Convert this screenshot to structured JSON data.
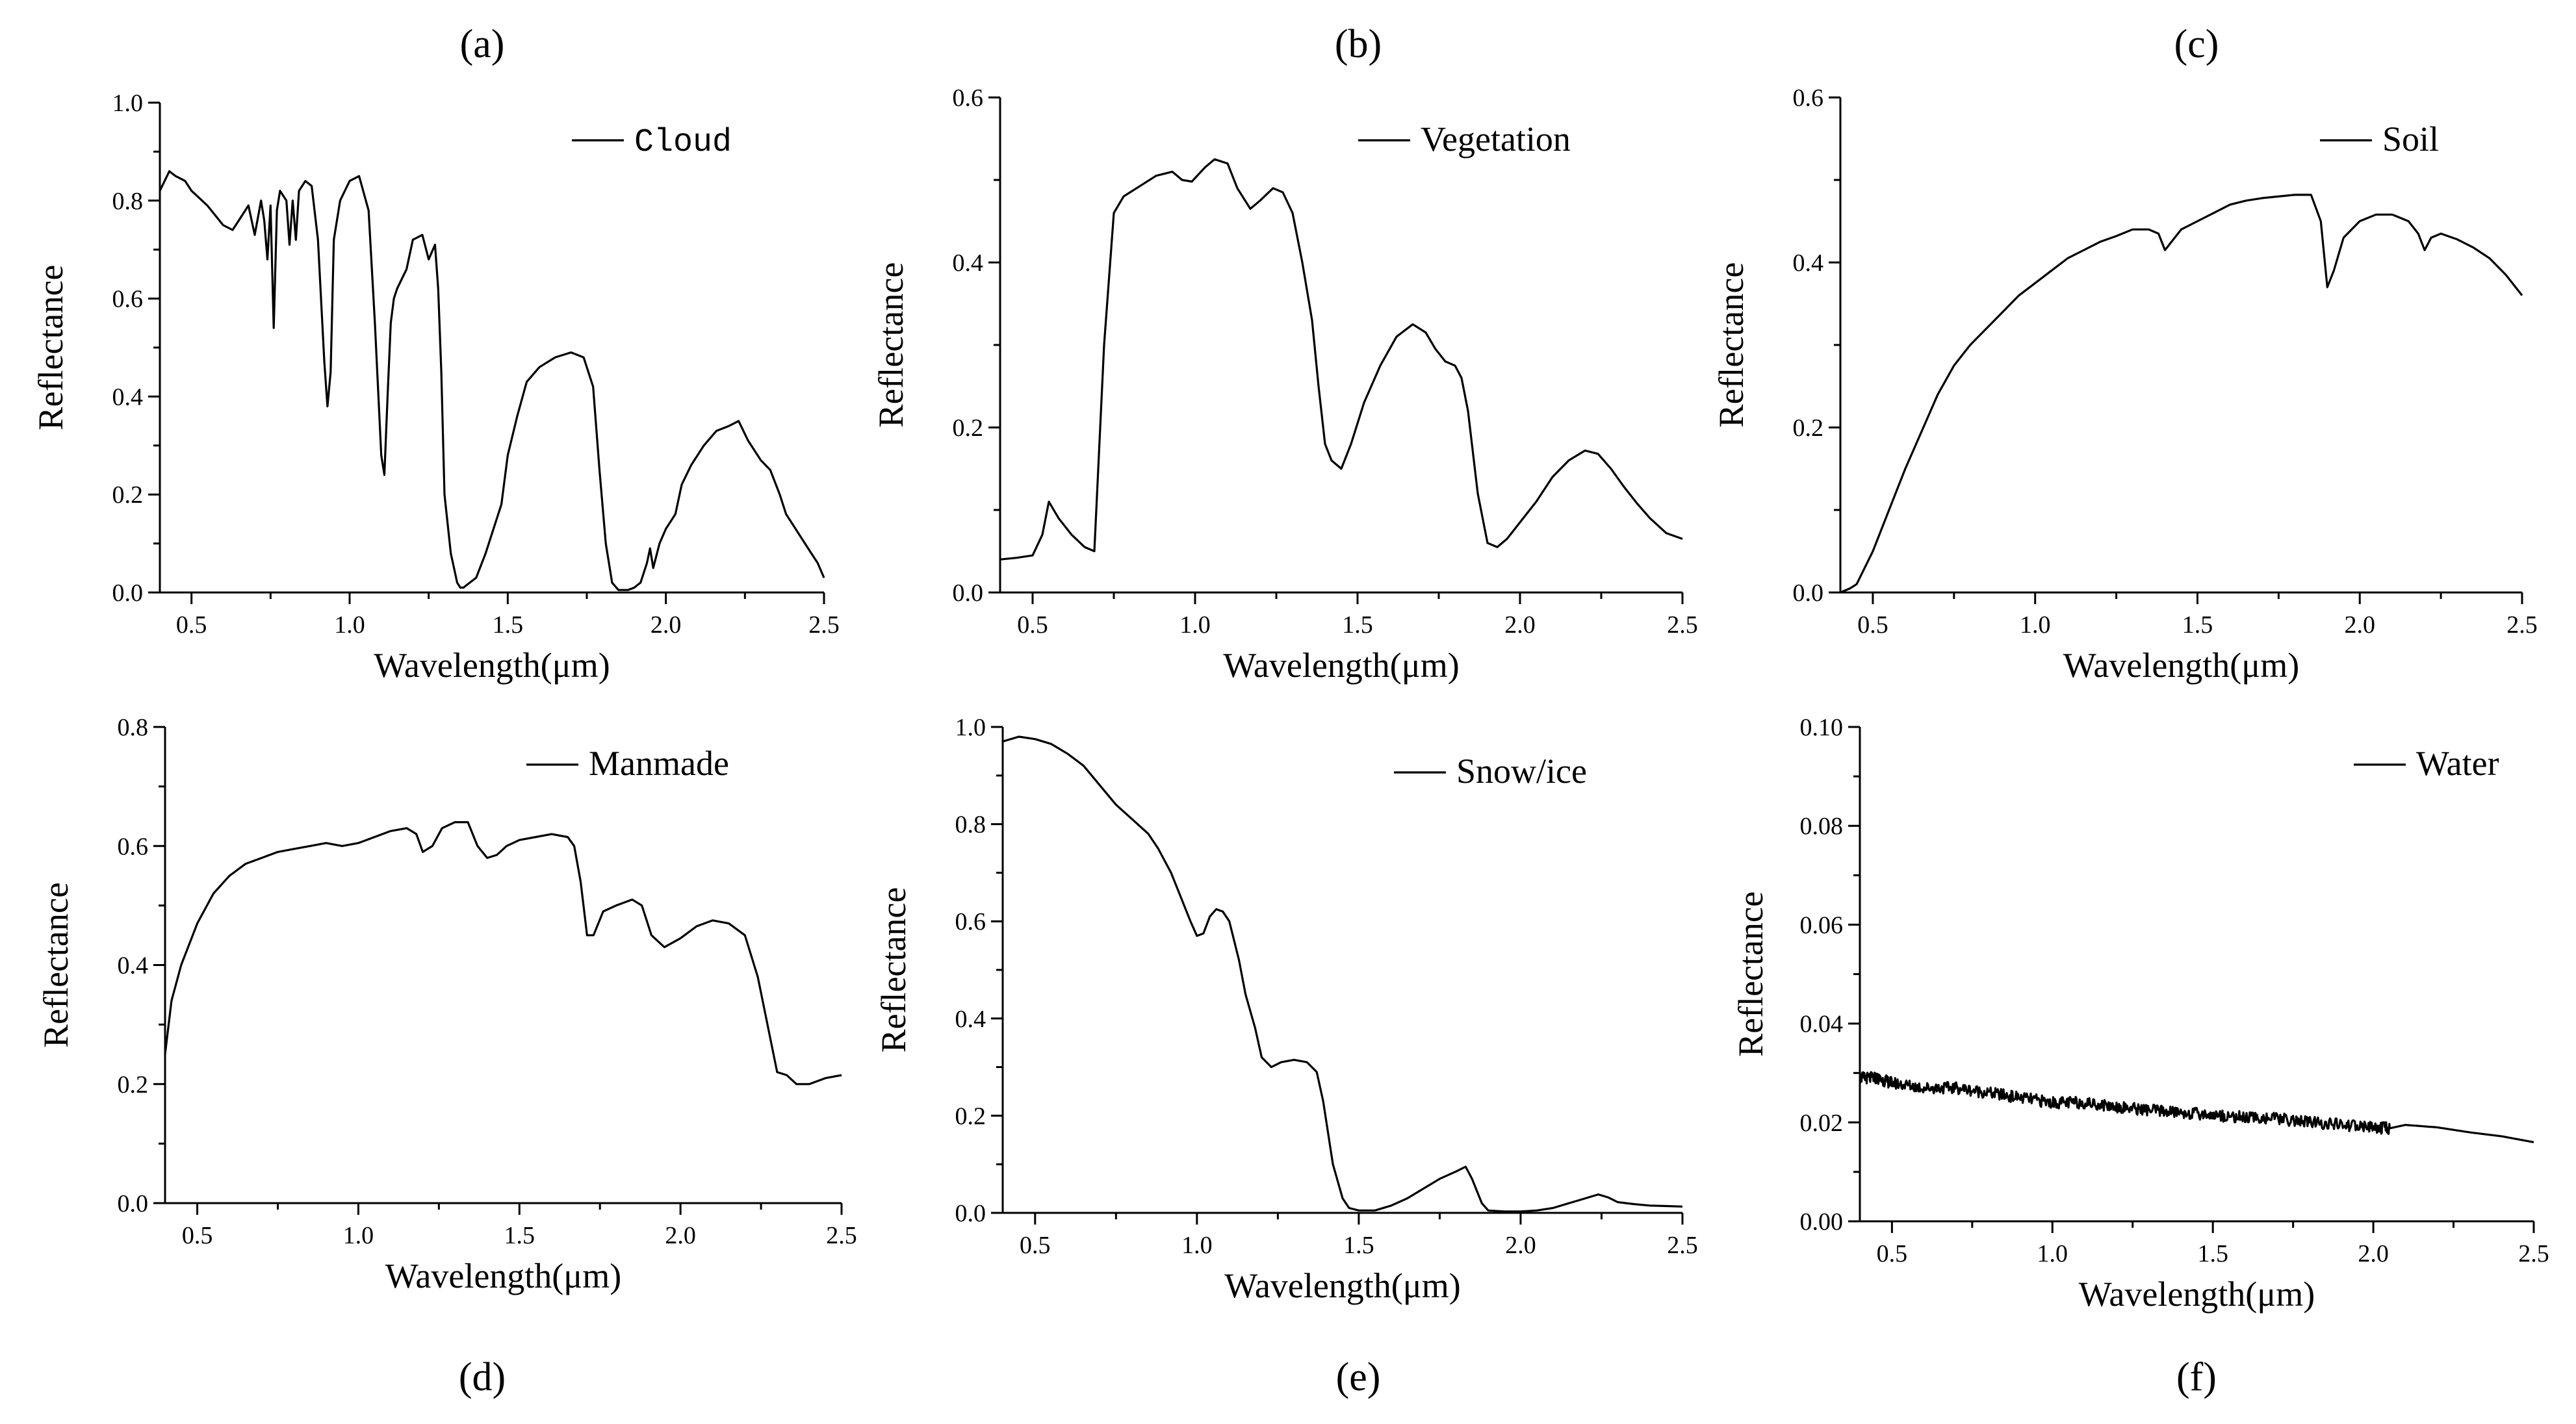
{
  "figure": {
    "type": "multi-panel spectral reflectance line charts"
  },
  "chart_data": [
    {
      "type": "line",
      "panel_label": "(a)",
      "legend": "Cloud",
      "title": "",
      "xlabel": "Wavelength(μm)",
      "ylabel": "Reflectance",
      "xlim": [
        0.4,
        2.5
      ],
      "ylim": [
        0,
        1.0
      ],
      "xticks": [
        0.5,
        1.0,
        1.5,
        2.0,
        2.5
      ],
      "xtick_labels": [
        "0.5",
        "1.0",
        "1.5",
        "2.0",
        "2.5"
      ],
      "yticks": [
        0,
        0.2,
        0.4,
        0.6,
        0.8,
        1.0
      ],
      "ytick_labels": [
        "0.0",
        "0.2",
        "0.4",
        "0.6",
        "0.8",
        "1.0"
      ],
      "series": [
        {
          "name": "Cloud",
          "x": [
            0.4,
            0.43,
            0.45,
            0.48,
            0.5,
            0.55,
            0.6,
            0.63,
            0.65,
            0.68,
            0.7,
            0.72,
            0.73,
            0.74,
            0.75,
            0.76,
            0.77,
            0.78,
            0.8,
            0.81,
            0.82,
            0.83,
            0.84,
            0.86,
            0.88,
            0.9,
            0.92,
            0.93,
            0.94,
            0.95,
            0.97,
            1.0,
            1.03,
            1.06,
            1.08,
            1.1,
            1.11,
            1.12,
            1.13,
            1.14,
            1.15,
            1.18,
            1.2,
            1.23,
            1.25,
            1.27,
            1.28,
            1.29,
            1.3,
            1.32,
            1.34,
            1.35,
            1.36,
            1.38,
            1.4,
            1.43,
            1.45,
            1.48,
            1.5,
            1.53,
            1.56,
            1.6,
            1.65,
            1.7,
            1.74,
            1.77,
            1.79,
            1.81,
            1.83,
            1.85,
            1.88,
            1.9,
            1.92,
            1.94,
            1.95,
            1.96,
            1.98,
            2.0,
            2.03,
            2.05,
            2.08,
            2.12,
            2.16,
            2.2,
            2.23,
            2.26,
            2.3,
            2.33,
            2.36,
            2.38,
            2.4,
            2.43,
            2.46,
            2.48,
            2.5
          ],
          "y": [
            0.82,
            0.86,
            0.85,
            0.84,
            0.82,
            0.79,
            0.75,
            0.74,
            0.76,
            0.79,
            0.73,
            0.8,
            0.76,
            0.68,
            0.79,
            0.54,
            0.78,
            0.82,
            0.8,
            0.71,
            0.8,
            0.72,
            0.82,
            0.84,
            0.83,
            0.72,
            0.47,
            0.38,
            0.45,
            0.72,
            0.8,
            0.84,
            0.85,
            0.78,
            0.55,
            0.28,
            0.24,
            0.4,
            0.55,
            0.6,
            0.62,
            0.66,
            0.72,
            0.73,
            0.68,
            0.71,
            0.62,
            0.45,
            0.2,
            0.08,
            0.02,
            0.01,
            0.01,
            0.02,
            0.03,
            0.08,
            0.12,
            0.18,
            0.28,
            0.36,
            0.43,
            0.46,
            0.48,
            0.49,
            0.48,
            0.42,
            0.25,
            0.1,
            0.02,
            0.005,
            0.005,
            0.01,
            0.02,
            0.06,
            0.09,
            0.05,
            0.1,
            0.13,
            0.16,
            0.22,
            0.26,
            0.3,
            0.33,
            0.34,
            0.35,
            0.31,
            0.27,
            0.25,
            0.2,
            0.16,
            0.14,
            0.11,
            0.08,
            0.06,
            0.03
          ]
        }
      ]
    },
    {
      "type": "line",
      "panel_label": "(b)",
      "legend": "Vegetation",
      "title": "",
      "xlabel": "Wavelength(μm)",
      "ylabel": "Reflectance",
      "xlim": [
        0.4,
        2.5
      ],
      "ylim": [
        0,
        0.6
      ],
      "xticks": [
        0.5,
        1.0,
        1.5,
        2.0,
        2.5
      ],
      "xtick_labels": [
        "0.5",
        "1.0",
        "1.5",
        "2.0",
        "2.5"
      ],
      "yticks": [
        0,
        0.2,
        0.4,
        0.6
      ],
      "ytick_labels": [
        "0.0",
        "0.2",
        "0.4",
        "0.6"
      ],
      "series": [
        {
          "name": "Vegetation",
          "x": [
            0.4,
            0.45,
            0.5,
            0.53,
            0.55,
            0.58,
            0.62,
            0.66,
            0.69,
            0.72,
            0.75,
            0.78,
            0.82,
            0.88,
            0.93,
            0.96,
            0.99,
            1.03,
            1.06,
            1.1,
            1.13,
            1.17,
            1.2,
            1.24,
            1.27,
            1.3,
            1.33,
            1.36,
            1.38,
            1.4,
            1.42,
            1.45,
            1.48,
            1.52,
            1.57,
            1.62,
            1.67,
            1.71,
            1.74,
            1.77,
            1.8,
            1.82,
            1.84,
            1.87,
            1.9,
            1.93,
            1.96,
            2.0,
            2.05,
            2.1,
            2.15,
            2.2,
            2.24,
            2.28,
            2.32,
            2.36,
            2.4,
            2.45,
            2.5
          ],
          "y": [
            0.04,
            0.042,
            0.045,
            0.07,
            0.11,
            0.09,
            0.07,
            0.055,
            0.05,
            0.3,
            0.46,
            0.48,
            0.49,
            0.505,
            0.51,
            0.5,
            0.498,
            0.515,
            0.525,
            0.52,
            0.49,
            0.465,
            0.475,
            0.49,
            0.485,
            0.46,
            0.4,
            0.33,
            0.25,
            0.18,
            0.16,
            0.15,
            0.18,
            0.23,
            0.275,
            0.31,
            0.325,
            0.315,
            0.295,
            0.28,
            0.275,
            0.26,
            0.22,
            0.12,
            0.06,
            0.055,
            0.065,
            0.085,
            0.11,
            0.14,
            0.16,
            0.172,
            0.168,
            0.15,
            0.128,
            0.108,
            0.09,
            0.072,
            0.065
          ]
        }
      ]
    },
    {
      "type": "line",
      "panel_label": "(c)",
      "legend": "Soil",
      "title": "",
      "xlabel": "Wavelength(μm)",
      "ylabel": "Reflectance",
      "xlim": [
        0.4,
        2.5
      ],
      "ylim": [
        0,
        0.6
      ],
      "xticks": [
        0.5,
        1.0,
        1.5,
        2.0,
        2.5
      ],
      "xtick_labels": [
        "0.5",
        "1.0",
        "1.5",
        "2.0",
        "2.5"
      ],
      "yticks": [
        0,
        0.2,
        0.4,
        0.6
      ],
      "ytick_labels": [
        "0.0",
        "0.2",
        "0.4",
        "0.6"
      ],
      "series": [
        {
          "name": "Soil",
          "x": [
            0.4,
            0.43,
            0.45,
            0.5,
            0.55,
            0.6,
            0.65,
            0.7,
            0.75,
            0.8,
            0.85,
            0.9,
            0.95,
            1.0,
            1.05,
            1.1,
            1.15,
            1.2,
            1.25,
            1.3,
            1.35,
            1.38,
            1.4,
            1.42,
            1.45,
            1.5,
            1.55,
            1.6,
            1.65,
            1.7,
            1.75,
            1.8,
            1.85,
            1.88,
            1.9,
            1.92,
            1.95,
            2.0,
            2.05,
            2.1,
            2.15,
            2.18,
            2.2,
            2.22,
            2.25,
            2.3,
            2.35,
            2.4,
            2.45,
            2.5
          ],
          "y": [
            0.0,
            0.005,
            0.01,
            0.05,
            0.1,
            0.15,
            0.195,
            0.24,
            0.275,
            0.3,
            0.32,
            0.34,
            0.36,
            0.375,
            0.39,
            0.405,
            0.415,
            0.425,
            0.432,
            0.44,
            0.44,
            0.435,
            0.415,
            0.425,
            0.44,
            0.45,
            0.46,
            0.47,
            0.475,
            0.478,
            0.48,
            0.482,
            0.482,
            0.45,
            0.37,
            0.39,
            0.43,
            0.45,
            0.458,
            0.458,
            0.45,
            0.435,
            0.415,
            0.43,
            0.435,
            0.428,
            0.418,
            0.405,
            0.385,
            0.36
          ]
        }
      ]
    },
    {
      "type": "line",
      "panel_label": "(d)",
      "legend": "Manmade",
      "title": "",
      "xlabel": "Wavelength(μm)",
      "ylabel": "Reflectance",
      "xlim": [
        0.4,
        2.5
      ],
      "ylim": [
        0,
        0.8
      ],
      "xticks": [
        0.5,
        1.0,
        1.5,
        2.0,
        2.5
      ],
      "xtick_labels": [
        "0.5",
        "1.0",
        "1.5",
        "2.0",
        "2.5"
      ],
      "yticks": [
        0,
        0.2,
        0.4,
        0.6,
        0.8
      ],
      "ytick_labels": [
        "0.0",
        "0.2",
        "0.4",
        "0.6",
        "0.8"
      ],
      "series": [
        {
          "name": "Manmade",
          "x": [
            0.4,
            0.42,
            0.45,
            0.5,
            0.55,
            0.6,
            0.65,
            0.7,
            0.75,
            0.8,
            0.85,
            0.9,
            0.95,
            1.0,
            1.05,
            1.1,
            1.15,
            1.18,
            1.2,
            1.23,
            1.26,
            1.3,
            1.34,
            1.37,
            1.4,
            1.43,
            1.46,
            1.5,
            1.55,
            1.6,
            1.65,
            1.67,
            1.69,
            1.71,
            1.73,
            1.76,
            1.8,
            1.85,
            1.88,
            1.91,
            1.95,
            2.0,
            2.05,
            2.1,
            2.15,
            2.2,
            2.24,
            2.27,
            2.3,
            2.33,
            2.36,
            2.4,
            2.45,
            2.5
          ],
          "y": [
            0.25,
            0.34,
            0.4,
            0.47,
            0.52,
            0.55,
            0.57,
            0.58,
            0.59,
            0.595,
            0.6,
            0.605,
            0.6,
            0.605,
            0.615,
            0.625,
            0.63,
            0.62,
            0.59,
            0.6,
            0.63,
            0.64,
            0.64,
            0.6,
            0.58,
            0.585,
            0.6,
            0.61,
            0.615,
            0.62,
            0.615,
            0.6,
            0.54,
            0.45,
            0.45,
            0.49,
            0.5,
            0.51,
            0.5,
            0.45,
            0.43,
            0.445,
            0.465,
            0.475,
            0.47,
            0.45,
            0.38,
            0.3,
            0.22,
            0.215,
            0.2,
            0.2,
            0.21,
            0.215
          ]
        }
      ]
    },
    {
      "type": "line",
      "panel_label": "(e)",
      "legend": "Snow/ice",
      "title": "",
      "xlabel": "Wavelength(μm)",
      "ylabel": "Reflectance",
      "xlim": [
        0.4,
        2.5
      ],
      "ylim": [
        0,
        1.0
      ],
      "xticks": [
        0.5,
        1.0,
        1.5,
        2.0,
        2.5
      ],
      "xtick_labels": [
        "0.5",
        "1.0",
        "1.5",
        "2.0",
        "2.5"
      ],
      "yticks": [
        0,
        0.2,
        0.4,
        0.6,
        0.8,
        1.0
      ],
      "ytick_labels": [
        "0.0",
        "0.2",
        "0.4",
        "0.6",
        "0.8",
        "1.0"
      ],
      "series": [
        {
          "name": "Snow/ice",
          "x": [
            0.4,
            0.45,
            0.5,
            0.55,
            0.6,
            0.65,
            0.7,
            0.75,
            0.8,
            0.85,
            0.88,
            0.92,
            0.95,
            0.98,
            1.0,
            1.02,
            1.04,
            1.06,
            1.08,
            1.1,
            1.13,
            1.15,
            1.18,
            1.2,
            1.23,
            1.26,
            1.3,
            1.34,
            1.37,
            1.39,
            1.42,
            1.45,
            1.47,
            1.5,
            1.55,
            1.6,
            1.65,
            1.7,
            1.75,
            1.8,
            1.83,
            1.85,
            1.88,
            1.9,
            1.95,
            2.0,
            2.05,
            2.1,
            2.15,
            2.2,
            2.24,
            2.27,
            2.3,
            2.35,
            2.4,
            2.45,
            2.5
          ],
          "y": [
            0.97,
            0.98,
            0.975,
            0.965,
            0.945,
            0.92,
            0.88,
            0.84,
            0.81,
            0.78,
            0.75,
            0.7,
            0.65,
            0.6,
            0.57,
            0.575,
            0.61,
            0.625,
            0.62,
            0.6,
            0.52,
            0.45,
            0.38,
            0.32,
            0.3,
            0.31,
            0.315,
            0.31,
            0.29,
            0.23,
            0.1,
            0.03,
            0.01,
            0.005,
            0.005,
            0.015,
            0.03,
            0.05,
            0.07,
            0.085,
            0.095,
            0.07,
            0.02,
            0.005,
            0.003,
            0.003,
            0.005,
            0.01,
            0.02,
            0.03,
            0.038,
            0.032,
            0.022,
            0.018,
            0.015,
            0.014,
            0.013
          ]
        }
      ]
    },
    {
      "type": "line",
      "panel_label": "(f)",
      "legend": "Water",
      "title": "",
      "xlabel": "Wavelength(μm)",
      "ylabel": "Reflectance",
      "xlim": [
        0.4,
        2.5
      ],
      "ylim": [
        0,
        0.1
      ],
      "xticks": [
        0.5,
        1.0,
        1.5,
        2.0,
        2.5
      ],
      "xtick_labels": [
        "0.5",
        "1.0",
        "1.5",
        "2.0",
        "2.5"
      ],
      "yticks": [
        0,
        0.02,
        0.04,
        0.06,
        0.08,
        0.1
      ],
      "ytick_labels": [
        "0.00",
        "0.02",
        "0.04",
        "0.06",
        "0.08",
        "0.10"
      ],
      "noise_amplitude": 0.0012,
      "noise_until": 2.05,
      "series": [
        {
          "name": "Water",
          "x": [
            0.4,
            0.45,
            0.5,
            0.6,
            0.7,
            0.8,
            0.9,
            1.0,
            1.1,
            1.2,
            1.3,
            1.4,
            1.5,
            1.6,
            1.7,
            1.8,
            1.9,
            2.0,
            2.05,
            2.1,
            2.2,
            2.3,
            2.4,
            2.5
          ],
          "y": [
            0.029,
            0.029,
            0.028,
            0.027,
            0.027,
            0.026,
            0.025,
            0.024,
            0.024,
            0.0232,
            0.0225,
            0.022,
            0.0215,
            0.021,
            0.0208,
            0.02,
            0.0195,
            0.019,
            0.0188,
            0.0195,
            0.019,
            0.018,
            0.0172,
            0.016
          ]
        }
      ]
    }
  ]
}
